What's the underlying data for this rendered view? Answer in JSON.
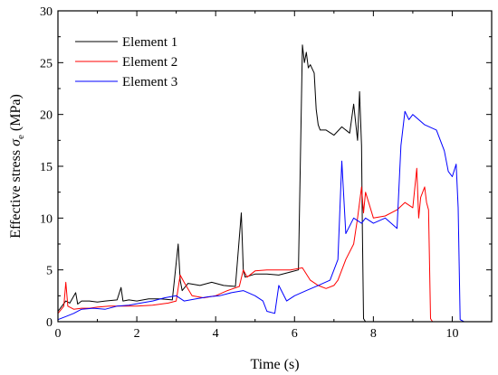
{
  "chart_data": {
    "type": "line",
    "title": "",
    "xlabel": "Time (s)",
    "ylabel_prefix": "Effective stress ",
    "ylabel_symbol": "σ",
    "ylabel_subscript": "e",
    "ylabel_suffix": " (MPa)",
    "xlim": [
      0,
      11
    ],
    "ylim": [
      0,
      30
    ],
    "xticks": [
      "0",
      "2",
      "4",
      "6",
      "8",
      "10"
    ],
    "yticks": [
      "0",
      "5",
      "10",
      "15",
      "20",
      "25",
      "30"
    ],
    "grid": false,
    "legend_position": "top-left",
    "series": [
      {
        "name": "Element 1",
        "color": "#000000",
        "x": [
          0,
          0.2,
          0.3,
          0.45,
          0.5,
          0.6,
          0.8,
          1.0,
          1.2,
          1.5,
          1.6,
          1.65,
          1.8,
          2.0,
          2.3,
          2.6,
          2.9,
          3.05,
          3.1,
          3.15,
          3.3,
          3.6,
          3.9,
          4.2,
          4.5,
          4.65,
          4.7,
          4.75,
          5.0,
          5.3,
          5.6,
          5.9,
          6.1,
          6.2,
          6.25,
          6.3,
          6.35,
          6.4,
          6.5,
          6.55,
          6.6,
          6.65,
          6.8,
          7.0,
          7.2,
          7.4,
          7.5,
          7.6,
          7.65,
          7.7,
          7.72,
          7.75,
          7.8,
          8.5,
          9.5,
          10.5,
          11.0
        ],
        "y": [
          1.0,
          2.0,
          1.8,
          2.8,
          1.7,
          2.0,
          2.0,
          1.9,
          2.0,
          2.1,
          3.3,
          2.0,
          2.1,
          2.0,
          2.2,
          2.2,
          2.1,
          7.5,
          4.0,
          3.0,
          3.7,
          3.5,
          3.8,
          3.5,
          3.4,
          10.5,
          5.0,
          4.3,
          4.6,
          4.6,
          4.5,
          4.8,
          5.0,
          26.7,
          25.0,
          26.0,
          24.5,
          24.8,
          24.0,
          20.5,
          19.0,
          18.5,
          18.5,
          18.0,
          18.8,
          18.2,
          21.0,
          17.5,
          22.2,
          17.0,
          9.0,
          0.3,
          0.0,
          0.0,
          0.0,
          0.0,
          0.0
        ]
      },
      {
        "name": "Element 2",
        "color": "#ff0000",
        "x": [
          0,
          0.15,
          0.2,
          0.25,
          0.4,
          0.6,
          0.8,
          1.0,
          1.3,
          1.6,
          2.0,
          2.4,
          2.8,
          3.0,
          3.1,
          3.2,
          3.4,
          3.7,
          4.0,
          4.3,
          4.6,
          4.7,
          4.8,
          5.0,
          5.3,
          5.6,
          5.9,
          6.2,
          6.4,
          6.6,
          6.8,
          7.0,
          7.1,
          7.3,
          7.5,
          7.6,
          7.7,
          7.75,
          7.8,
          8.0,
          8.3,
          8.6,
          8.8,
          9.0,
          9.1,
          9.15,
          9.2,
          9.3,
          9.35,
          9.4,
          9.45,
          9.5,
          10.0,
          10.5,
          11.0
        ],
        "y": [
          0.8,
          1.5,
          3.8,
          1.5,
          1.2,
          1.3,
          1.3,
          1.4,
          1.5,
          1.5,
          1.5,
          1.6,
          1.8,
          2.0,
          4.5,
          3.8,
          2.5,
          2.3,
          2.5,
          3.0,
          3.4,
          5.0,
          4.3,
          4.9,
          5.0,
          5.0,
          5.0,
          5.2,
          4.0,
          3.5,
          3.2,
          3.5,
          4.0,
          6.0,
          7.5,
          10.0,
          13.0,
          10.5,
          12.5,
          10.0,
          10.2,
          10.8,
          11.5,
          11.0,
          14.8,
          10.0,
          12.0,
          13.0,
          11.5,
          10.8,
          0.3,
          0.0,
          0.0,
          0.0,
          0.0
        ]
      },
      {
        "name": "Element 3",
        "color": "#0000ff",
        "x": [
          0,
          0.2,
          0.4,
          0.6,
          0.9,
          1.2,
          1.5,
          1.8,
          2.1,
          2.4,
          2.7,
          3.0,
          3.2,
          3.5,
          3.8,
          4.1,
          4.4,
          4.7,
          5.0,
          5.2,
          5.3,
          5.5,
          5.6,
          5.8,
          6.0,
          6.3,
          6.6,
          6.9,
          7.1,
          7.2,
          7.3,
          7.5,
          7.7,
          7.8,
          8.0,
          8.3,
          8.6,
          8.7,
          8.8,
          8.9,
          9.0,
          9.3,
          9.6,
          9.8,
          9.9,
          10.0,
          10.1,
          10.15,
          10.2,
          10.3,
          10.6,
          11.0
        ],
        "y": [
          0.2,
          0.5,
          0.8,
          1.2,
          1.3,
          1.2,
          1.5,
          1.6,
          1.8,
          2.0,
          2.3,
          2.5,
          2.0,
          2.2,
          2.4,
          2.5,
          2.8,
          3.0,
          2.5,
          2.0,
          1.0,
          0.8,
          3.5,
          2.0,
          2.5,
          3.0,
          3.5,
          4.0,
          6.0,
          15.5,
          8.5,
          10.0,
          9.5,
          10.0,
          9.5,
          10.0,
          9.0,
          17.0,
          20.3,
          19.5,
          20.0,
          19.0,
          18.5,
          16.5,
          14.5,
          14.0,
          15.2,
          11.0,
          0.2,
          0.0,
          0.0,
          0.0
        ]
      }
    ]
  }
}
